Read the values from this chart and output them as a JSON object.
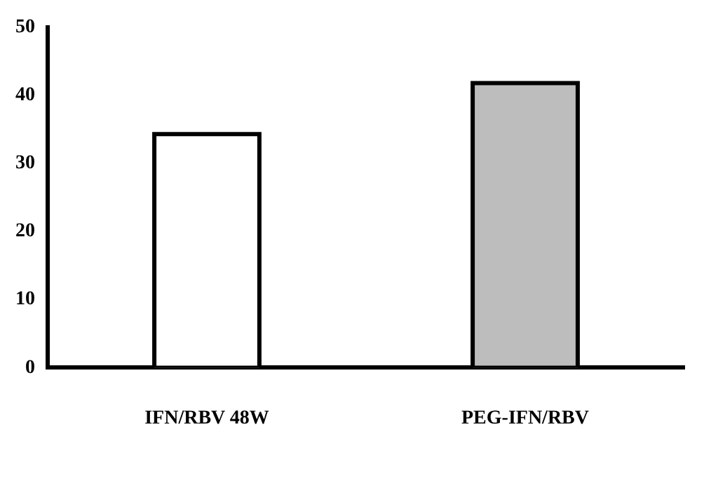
{
  "chart_data": {
    "type": "bar",
    "categories": [
      "IFN/RBV 48W",
      "PEG-IFN/RBV"
    ],
    "values": [
      34.3,
      41.8
    ],
    "colors": [
      "#ffffff",
      "#bdbdbd"
    ],
    "ylim": [
      0,
      50
    ],
    "yticks": [
      0,
      10,
      20,
      30,
      40,
      50
    ],
    "grid": false,
    "legend": false
  }
}
